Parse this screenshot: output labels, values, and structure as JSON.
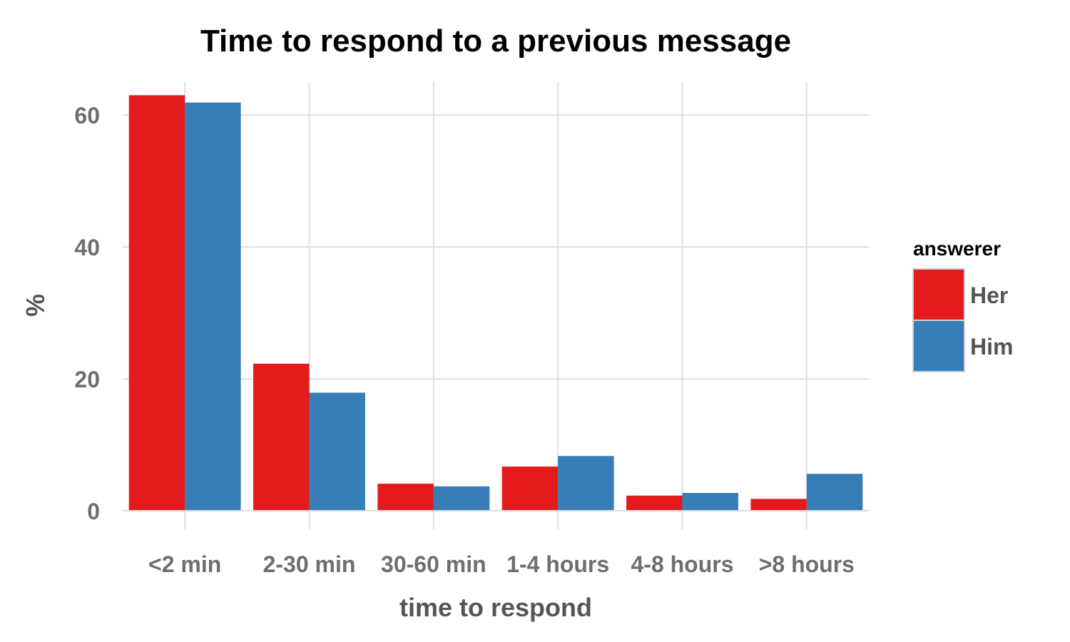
{
  "chart_data": {
    "type": "bar",
    "title": "Time to respond to a previous message",
    "xlabel": "time to respond",
    "ylabel": "%",
    "categories": [
      "<2 min",
      "2-30 min",
      "30-60 min",
      "1-4 hours",
      "4-8 hours",
      ">8 hours"
    ],
    "series": [
      {
        "name": "Her",
        "color": "#e41a1c",
        "values": [
          63.0,
          22.3,
          4.1,
          6.7,
          2.3,
          1.8
        ]
      },
      {
        "name": "Him",
        "color": "#377eb8",
        "values": [
          61.9,
          17.9,
          3.7,
          8.3,
          2.7,
          5.6
        ]
      }
    ],
    "ylim": [
      0,
      65
    ],
    "yticks": [
      0,
      20,
      40,
      60
    ],
    "grid": true,
    "legend": {
      "title": "answerer",
      "placement": "right"
    }
  }
}
